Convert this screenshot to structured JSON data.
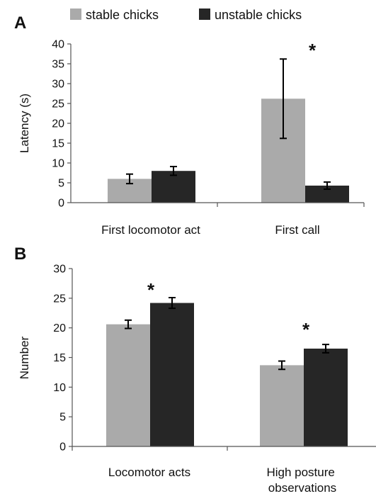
{
  "colors": {
    "stable": "#aaaaaa",
    "unstable": "#262626",
    "axis": "#555555"
  },
  "legend": {
    "stable": "stable chicks",
    "unstable": "unstable chicks"
  },
  "chart_data": [
    {
      "type": "bar",
      "panel": "A",
      "ylabel": "Latency (s)",
      "ylim": [
        0,
        40
      ],
      "yticks": [
        "0",
        "5",
        "10",
        "15",
        "20",
        "25",
        "30",
        "35",
        "40"
      ],
      "categories": [
        "First locomotor act",
        "First call"
      ],
      "series": [
        {
          "name": "stable chicks",
          "values": [
            6.0,
            26.2
          ],
          "errors": [
            1.2,
            10.0
          ]
        },
        {
          "name": "unstable chicks",
          "values": [
            8.0,
            4.3
          ],
          "errors": [
            1.1,
            0.9
          ]
        }
      ],
      "annotations": [
        "*"
      ],
      "grid": false,
      "legend_position": "top"
    },
    {
      "type": "bar",
      "panel": "B",
      "ylabel": "Number",
      "ylim": [
        0,
        30
      ],
      "yticks": [
        "0",
        "5",
        "10",
        "15",
        "20",
        "25",
        "30"
      ],
      "categories": [
        "Locomotor acts",
        "High posture observations"
      ],
      "series": [
        {
          "name": "stable chicks",
          "values": [
            20.6,
            13.7
          ],
          "errors": [
            0.7,
            0.7
          ]
        },
        {
          "name": "unstable chicks",
          "values": [
            24.2,
            16.5
          ],
          "errors": [
            0.9,
            0.7
          ]
        }
      ],
      "annotations": [
        "*",
        "*"
      ],
      "grid": false
    }
  ]
}
